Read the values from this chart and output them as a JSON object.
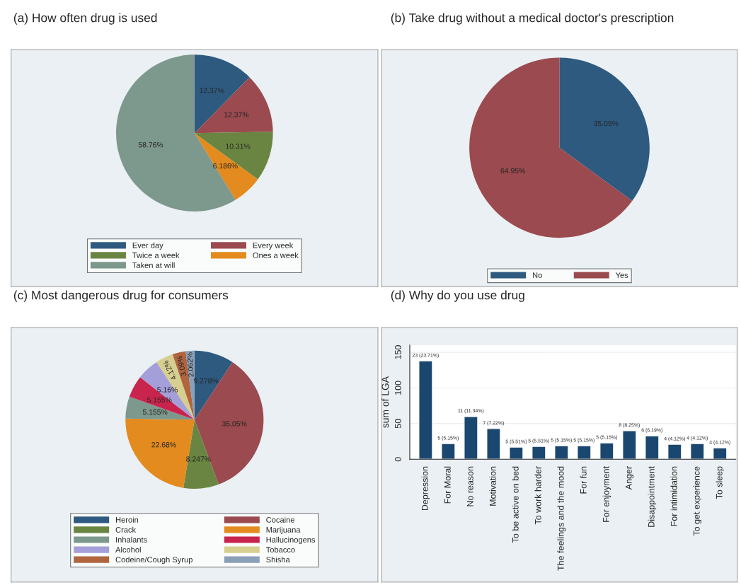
{
  "chart_data": [
    {
      "type": "pie",
      "title": "(a) How often drug is used",
      "categories": [
        "Ever day",
        "Every week",
        "Twice a week",
        "Ones a week",
        "Taken at will"
      ],
      "values": [
        12.37,
        12.37,
        10.31,
        6.186,
        58.76
      ],
      "value_labels": [
        "12.37%",
        "12.37%",
        "10.31%",
        "6.186%",
        "58.76%"
      ],
      "colors": [
        "#2e5a80",
        "#9b4a4f",
        "#6a8542",
        "#e38b1e",
        "#7d988c"
      ],
      "legend": "bottom"
    },
    {
      "type": "pie",
      "title": "(b) Take drug without a medical doctor's prescription",
      "categories": [
        "No",
        "Yes"
      ],
      "values": [
        35.05,
        64.95
      ],
      "value_labels": [
        "35.05%",
        "64.95%"
      ],
      "colors": [
        "#2e5a80",
        "#9b4a4f"
      ],
      "legend": "bottom"
    },
    {
      "type": "pie",
      "title": "(c) Most dangerous drug for consumers",
      "categories": [
        "Heroin",
        "Cocaine",
        "Crack",
        "Marijuana",
        "Inhalants",
        "Hallucinogens",
        "Alcohol",
        "Tobacco",
        "Codeine/Cough Syrup",
        "Shisha"
      ],
      "values": [
        9.278,
        35.05,
        8.247,
        22.68,
        5.155,
        5.155,
        5.16,
        4.12,
        3.09,
        2.062
      ],
      "value_labels": [
        "9.278%",
        "35.05%",
        "8.247%",
        "22.68%",
        "5.155%",
        "5.155%",
        "5.16%",
        "4.12%",
        "3.09%",
        "2.062%"
      ],
      "colors": [
        "#2e5a80",
        "#9b4a4f",
        "#6a8542",
        "#e38b1e",
        "#7d988c",
        "#c9244d",
        "#a49fd8",
        "#d6cf8f",
        "#b0653e",
        "#8aa0b8"
      ],
      "legend": "bottom"
    },
    {
      "type": "bar",
      "title": "(d) Why do you use drug",
      "ylabel": "sum of LGA",
      "categories": [
        "Depression",
        "For Moral",
        "No reason",
        "Motivation",
        "To be active on bed",
        "To work harder",
        "The feelings and the mood",
        "For fun",
        "For enjoyment",
        "Anger",
        "Disappointment",
        "For intimidation",
        "To get experience",
        "To sleep"
      ],
      "values": [
        138,
        22,
        60,
        43,
        17,
        18,
        19,
        19,
        23,
        40,
        33,
        21,
        22,
        16
      ],
      "annotations": [
        {
          "text": "23 (23.71%)",
          "x": "Depression",
          "y": 138
        },
        {
          "text": "5 (5.15%)",
          "x": "For Moral",
          "y": 22
        },
        {
          "text": "11 (11.34%)",
          "x": "No reason",
          "y": 60
        },
        {
          "text": "7 (7.22%)",
          "x": "Motivation",
          "y": 43
        },
        {
          "text": "5 (5.51%)",
          "x": "To be active on bed",
          "y": 17
        },
        {
          "text": "5 (5.51%)",
          "x": "To work harder",
          "y": 18
        },
        {
          "text": "5 (5.15%)",
          "x": "The feelings and the mood",
          "y": 19
        },
        {
          "text": "5 (5.15%)",
          "x": "For fun",
          "y": 19
        },
        {
          "text": "5 (5.15%)",
          "x": "For enjoyment",
          "y": 23
        },
        {
          "text": "8 (8.25%)",
          "x": "Anger",
          "y": 40
        },
        {
          "text": "6 (6.19%)",
          "x": "Disappointment",
          "y": 33
        },
        {
          "text": "4 (4.12%)",
          "x": "For intimidation",
          "y": 21
        },
        {
          "text": "4 (4.12%)",
          "x": "To get experience",
          "y": 22
        },
        {
          "text": "4 (4.12%)",
          "x": "To sleep",
          "y": 16
        }
      ],
      "color": "#1a476f",
      "ylim": [
        0,
        160
      ],
      "yticks": [
        0,
        50,
        100,
        150
      ],
      "grid": "y"
    }
  ]
}
